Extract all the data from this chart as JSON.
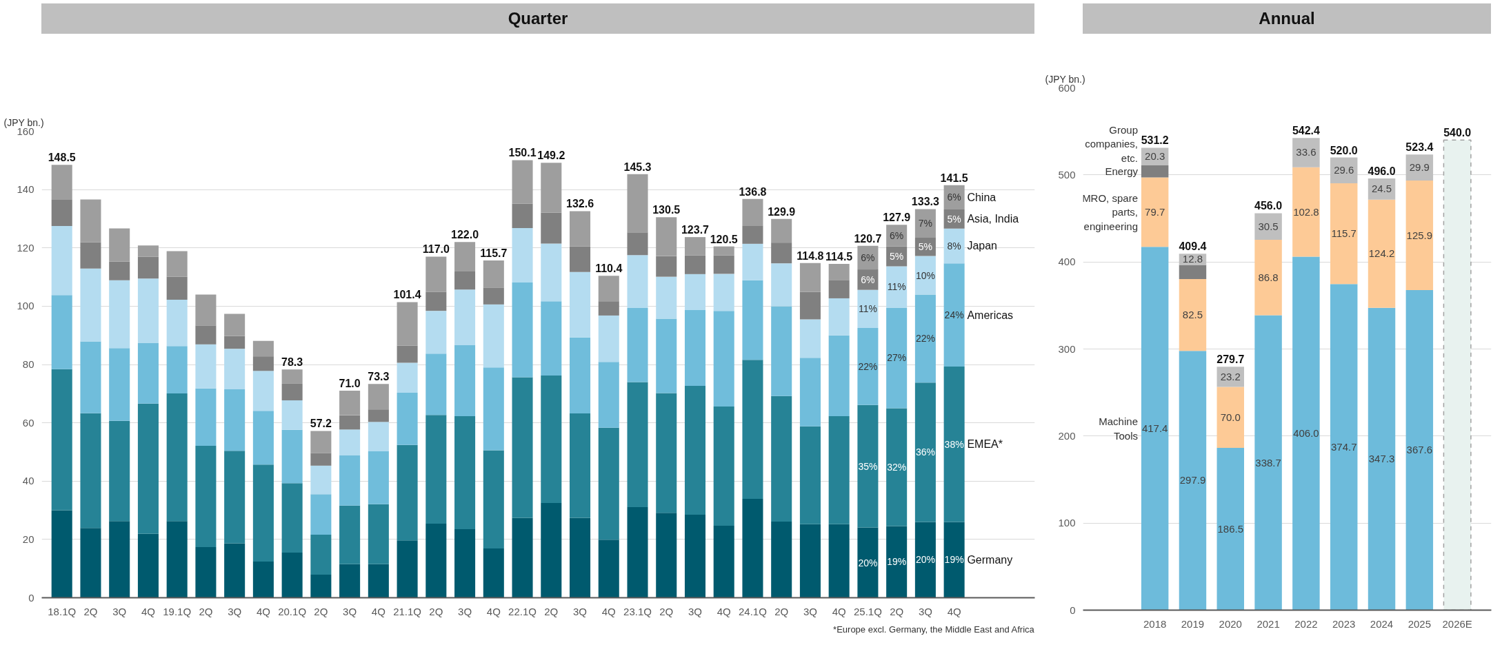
{
  "chart_data": [
    {
      "type": "bar",
      "stacked": true,
      "title": "Quarter",
      "ylabel": "(JPY bn.)",
      "grid": "y",
      "categories": [
        "18.1Q",
        "2Q",
        "3Q",
        "4Q",
        "19.1Q",
        "2Q",
        "3Q",
        "4Q",
        "20.1Q",
        "2Q",
        "3Q",
        "4Q",
        "21.1Q",
        "2Q",
        "3Q",
        "4Q",
        "22.1Q",
        "2Q",
        "3Q",
        "4Q",
        "23.1Q",
        "2Q",
        "3Q",
        "4Q",
        "24.1Q",
        "2Q",
        "3Q",
        "4Q",
        "25.1Q",
        "2Q",
        "3Q",
        "4Q"
      ],
      "ylim": [
        0,
        160
      ],
      "yticks": [
        0,
        20,
        40,
        60,
        80,
        100,
        120,
        140,
        160
      ],
      "series": [
        {
          "name": "Germany",
          "color": "#005a6e",
          "values": [
            30.0,
            23.9,
            26.3,
            21.9,
            26.3,
            17.4,
            18.7,
            12.4,
            15.5,
            7.9,
            11.5,
            11.5,
            19.7,
            25.4,
            23.5,
            16.9,
            27.4,
            32.5,
            27.4,
            19.9,
            31.1,
            29.1,
            28.5,
            24.7,
            33.9,
            26.1,
            25.2,
            25.2,
            24.1,
            24.6,
            26.0,
            26.0
          ]
        },
        {
          "name": "EMEA*",
          "color": "#268396",
          "values": [
            48.4,
            39.4,
            34.4,
            44.7,
            43.8,
            34.7,
            31.7,
            33.3,
            23.8,
            13.7,
            20.1,
            20.6,
            32.7,
            37.3,
            38.8,
            33.7,
            48.2,
            43.7,
            35.8,
            38.4,
            42.9,
            41.1,
            44.2,
            40.9,
            47.7,
            43.1,
            33.6,
            37.1,
            42.0,
            40.4,
            47.8,
            53.3
          ]
        },
        {
          "name": "Americas",
          "color": "#70bddb",
          "values": [
            25.4,
            24.6,
            24.9,
            20.7,
            16.2,
            19.7,
            21.1,
            18.4,
            18.3,
            13.9,
            17.2,
            18.1,
            17.9,
            21.0,
            24.3,
            28.4,
            32.5,
            25.5,
            26.1,
            22.6,
            25.4,
            25.5,
            26.0,
            32.8,
            27.3,
            30.8,
            23.5,
            27.7,
            26.4,
            34.5,
            30.2,
            35.4
          ]
        },
        {
          "name": "Japan",
          "color": "#b4dcf0",
          "values": [
            23.7,
            25.0,
            23.3,
            22.2,
            15.9,
            15.1,
            13.9,
            13.7,
            10.1,
            9.8,
            8.9,
            10.1,
            10.3,
            14.7,
            19.1,
            21.6,
            18.7,
            19.8,
            22.4,
            15.9,
            18.1,
            14.4,
            12.3,
            12.7,
            12.5,
            14.7,
            13.2,
            12.7,
            13.1,
            14.2,
            13.2,
            11.9
          ]
        },
        {
          "name": "Asia, India",
          "color": "#808080",
          "values": [
            9.0,
            9.0,
            6.4,
            7.5,
            7.9,
            6.5,
            4.4,
            5.0,
            5.7,
            4.3,
            4.9,
            4.3,
            5.9,
            6.5,
            6.2,
            5.8,
            8.4,
            10.6,
            8.8,
            4.9,
            7.8,
            7.1,
            6.4,
            6.3,
            6.1,
            7.1,
            9.4,
            6.3,
            7.0,
            6.8,
            6.3,
            6.6
          ]
        },
        {
          "name": "China",
          "color": "#9e9e9e",
          "values": [
            12.0,
            14.7,
            11.4,
            3.8,
            8.8,
            10.6,
            7.6,
            5.3,
            4.9,
            7.6,
            8.4,
            8.7,
            14.9,
            12.1,
            10.1,
            9.3,
            14.9,
            17.1,
            12.1,
            8.7,
            20.0,
            13.3,
            6.3,
            3.1,
            9.3,
            8.1,
            9.9,
            5.5,
            8.1,
            7.4,
            9.8,
            8.3
          ]
        }
      ],
      "totals": [
        "148.5",
        null,
        null,
        null,
        null,
        null,
        null,
        null,
        "78.3",
        "57.2",
        "71.0",
        "73.3",
        "101.4",
        "117.0",
        "122.0",
        "115.7",
        "150.1",
        "149.2",
        "132.6",
        "110.4",
        "145.3",
        "130.5",
        "123.7",
        "120.5",
        "136.8",
        "129.9",
        "114.8",
        "114.5",
        "120.7",
        "127.9",
        "133.3",
        "141.5"
      ],
      "annotations": [
        "20%",
        "35%",
        "22%",
        "11%",
        "6%",
        "6%",
        "19%",
        "32%",
        "27%",
        "11%",
        "5%",
        "6%",
        "20%",
        "36%",
        "22%",
        "10%",
        "5%",
        "7%",
        "19%",
        "38%",
        "24%",
        "8%",
        "5%",
        "6%",
        "*Europe excl. Germany, the Middle East and Africa"
      ]
    },
    {
      "type": "bar",
      "stacked": true,
      "title": "Annual",
      "ylabel": "(JPY bn.)",
      "grid": "y",
      "categories": [
        "2018",
        "2019",
        "2020",
        "2021",
        "2022",
        "2023",
        "2024",
        "2025",
        "2026E"
      ],
      "ylim": [
        0,
        600
      ],
      "yticks": [
        0,
        100,
        200,
        300,
        400,
        500,
        600
      ],
      "series": [
        {
          "name": "Machine Tools",
          "color": "#6dbbdb",
          "values": [
            417.4,
            297.9,
            186.5,
            338.7,
            406.0,
            374.7,
            347.3,
            367.6,
            null
          ],
          "value_labels": [
            "417.4",
            "297.9",
            "186.5",
            "338.7",
            "406.0",
            "374.7",
            "347.3",
            "367.6",
            null
          ]
        },
        {
          "name": "MRO, spare parts, engineering",
          "color": "#fdca96",
          "values": [
            79.7,
            82.5,
            70.0,
            86.8,
            102.8,
            115.7,
            124.2,
            125.9,
            null
          ],
          "value_labels": [
            "79.7",
            "82.5",
            "70.0",
            "86.8",
            "102.8",
            "115.7",
            "124.2",
            "125.9",
            null
          ]
        },
        {
          "name": "Energy",
          "color": "#7f7f7f",
          "values": [
            13.8,
            16.2,
            null,
            null,
            null,
            null,
            null,
            null,
            null
          ]
        },
        {
          "name": "Group companies, etc.",
          "color": "#bfbfbf",
          "values": [
            20.3,
            12.8,
            23.2,
            30.5,
            33.6,
            29.6,
            24.5,
            29.9,
            null
          ],
          "value_labels": [
            "20.3",
            "12.8",
            "23.2",
            "30.5",
            "33.6",
            "29.6",
            "24.5",
            "29.9",
            null
          ]
        },
        {
          "color": "#e8f2ef",
          "line_style": "dashed",
          "values": [
            null,
            null,
            null,
            null,
            null,
            null,
            null,
            null,
            540.0
          ]
        }
      ],
      "totals": [
        "531.2",
        "409.4",
        "279.7",
        "456.0",
        "542.4",
        "520.0",
        "496.0",
        "523.4",
        "540.0"
      ]
    }
  ]
}
